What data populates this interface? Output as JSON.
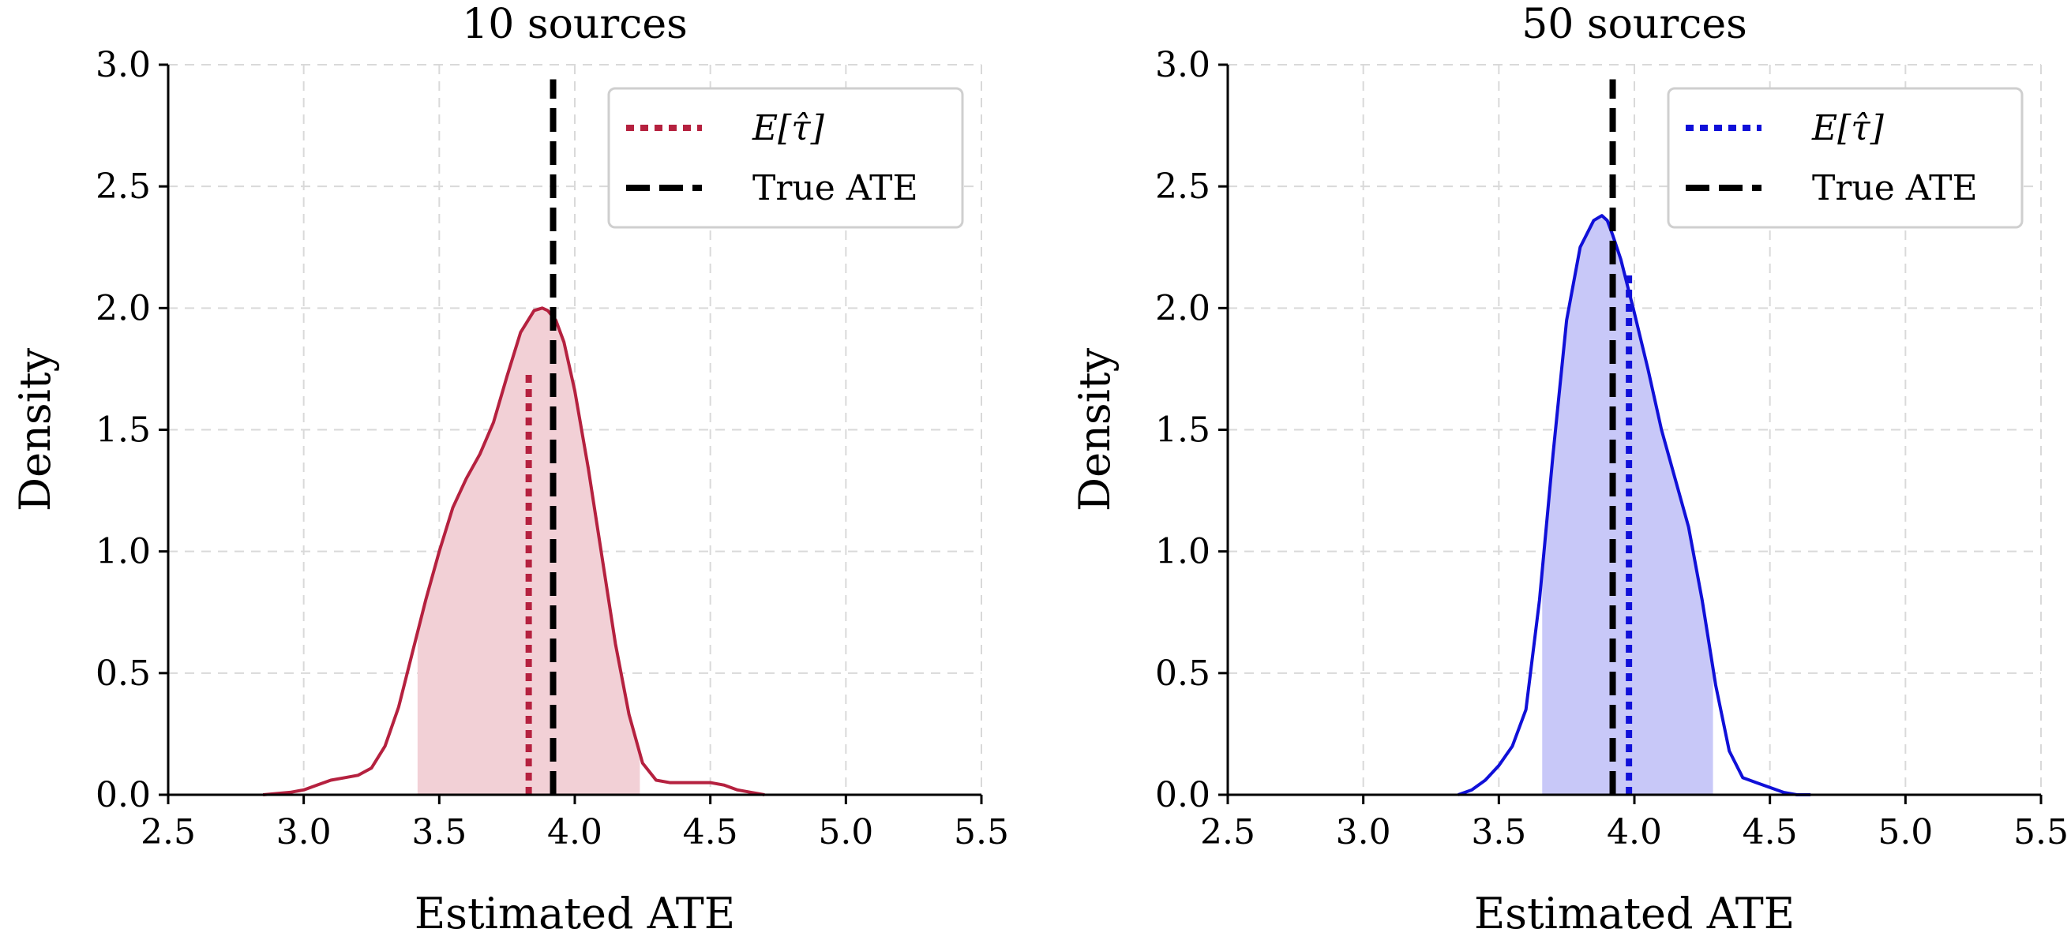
{
  "chart_data": [
    {
      "type": "area",
      "title": "10 sources",
      "xlabel": "Estimated ATE",
      "ylabel": "Density",
      "xlim": [
        2.5,
        5.5
      ],
      "ylim": [
        0.0,
        3.0
      ],
      "xticks": [
        "2.5",
        "3.0",
        "3.5",
        "4.0",
        "4.5",
        "5.0",
        "5.5"
      ],
      "yticks": [
        "0.0",
        "0.5",
        "1.0",
        "1.5",
        "2.0",
        "2.5",
        "3.0"
      ],
      "grid": true,
      "legend_position": "top-right",
      "color": "#b5213f",
      "fill_color": "#f2d0d6",
      "density": {
        "x": [
          2.85,
          2.95,
          3.0,
          3.05,
          3.1,
          3.15,
          3.2,
          3.25,
          3.3,
          3.35,
          3.4,
          3.45,
          3.5,
          3.55,
          3.6,
          3.65,
          3.7,
          3.75,
          3.8,
          3.85,
          3.88,
          3.9,
          3.93,
          3.96,
          4.0,
          4.05,
          4.1,
          4.15,
          4.2,
          4.25,
          4.3,
          4.35,
          4.4,
          4.45,
          4.5,
          4.55,
          4.6,
          4.65,
          4.7
        ],
        "y": [
          0.0,
          0.01,
          0.02,
          0.04,
          0.06,
          0.07,
          0.08,
          0.11,
          0.2,
          0.36,
          0.58,
          0.8,
          1.0,
          1.18,
          1.3,
          1.4,
          1.53,
          1.72,
          1.9,
          1.99,
          2.0,
          1.99,
          1.95,
          1.86,
          1.66,
          1.34,
          0.98,
          0.62,
          0.33,
          0.13,
          0.06,
          0.05,
          0.05,
          0.05,
          0.05,
          0.04,
          0.02,
          0.01,
          0.0
        ]
      },
      "fill_range": [
        3.42,
        4.24
      ],
      "mean_line": {
        "label": "E[τ̂]",
        "x": 3.83,
        "ymax": 1.75,
        "style": "dotted"
      },
      "true_line": {
        "label": "True ATE",
        "x": 3.92,
        "ymax": 2.94,
        "style": "dashed"
      }
    },
    {
      "type": "area",
      "title": "50 sources",
      "xlabel": "Estimated ATE",
      "ylabel": "Density",
      "xlim": [
        2.5,
        5.5
      ],
      "ylim": [
        0.0,
        3.0
      ],
      "xticks": [
        "2.5",
        "3.0",
        "3.5",
        "4.0",
        "4.5",
        "5.0",
        "5.5"
      ],
      "yticks": [
        "0.0",
        "0.5",
        "1.0",
        "1.5",
        "2.0",
        "2.5",
        "3.0"
      ],
      "grid": true,
      "legend_position": "top-right",
      "color": "#1010d8",
      "fill_color": "#c8c8f8",
      "density": {
        "x": [
          3.35,
          3.4,
          3.45,
          3.5,
          3.55,
          3.6,
          3.65,
          3.7,
          3.75,
          3.8,
          3.85,
          3.88,
          3.9,
          3.92,
          3.95,
          4.0,
          4.05,
          4.1,
          4.15,
          4.2,
          4.25,
          4.3,
          4.35,
          4.4,
          4.45,
          4.5,
          4.55,
          4.6,
          4.65
        ],
        "y": [
          0.0,
          0.02,
          0.06,
          0.12,
          0.2,
          0.35,
          0.8,
          1.4,
          1.95,
          2.25,
          2.36,
          2.38,
          2.36,
          2.3,
          2.2,
          1.98,
          1.75,
          1.5,
          1.3,
          1.1,
          0.8,
          0.45,
          0.18,
          0.07,
          0.05,
          0.03,
          0.01,
          0.0,
          0.0
        ]
      },
      "fill_range": [
        3.66,
        4.29
      ],
      "mean_line": {
        "label": "E[τ̂]",
        "x": 3.98,
        "ymax": 2.15,
        "style": "dotted"
      },
      "true_line": {
        "label": "True ATE",
        "x": 3.92,
        "ymax": 2.94,
        "style": "dashed"
      }
    }
  ]
}
